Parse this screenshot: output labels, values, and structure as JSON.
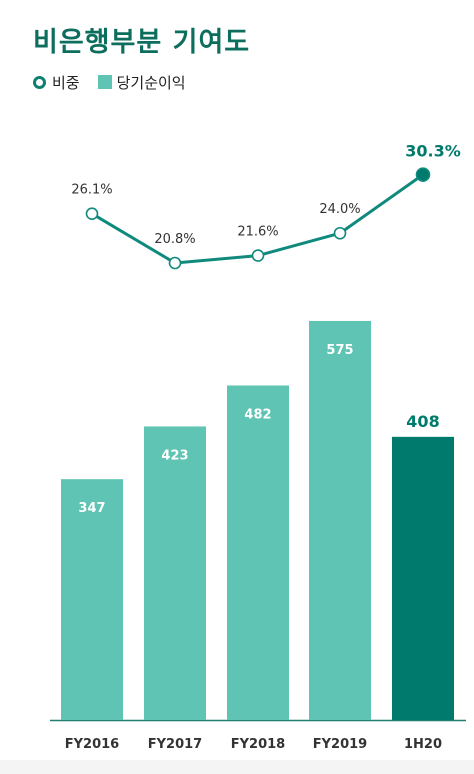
{
  "header": {
    "title": "비은행부분 기여도"
  },
  "legend": {
    "ratio_label": "비중",
    "profit_label": "당기순이익"
  },
  "colors": {
    "title": "#0e6e5e",
    "bar": "#5fc4b3",
    "bar_highlight": "#007a6c",
    "line": "#0f8a7c",
    "axis": "#1f7e72"
  },
  "chart_data": {
    "type": "bar",
    "categories": [
      "FY2016",
      "FY2017",
      "FY2018",
      "FY2019",
      "1H20"
    ],
    "series": [
      {
        "name": "당기순이익",
        "type": "bar",
        "values": [
          347,
          423,
          482,
          575,
          408
        ],
        "labels": [
          "347",
          "423",
          "482",
          "575",
          "408"
        ]
      },
      {
        "name": "비중",
        "type": "line",
        "values": [
          26.1,
          20.8,
          21.6,
          24.0,
          30.3
        ],
        "labels": [
          "26.1%",
          "20.8%",
          "21.6%",
          "24.0%",
          "30.3%"
        ]
      }
    ],
    "highlight_index": 4,
    "ylim_bar": [
      0,
      700
    ],
    "ylim_line": [
      18,
      31
    ],
    "grid": false,
    "legend_position": "top-left"
  }
}
